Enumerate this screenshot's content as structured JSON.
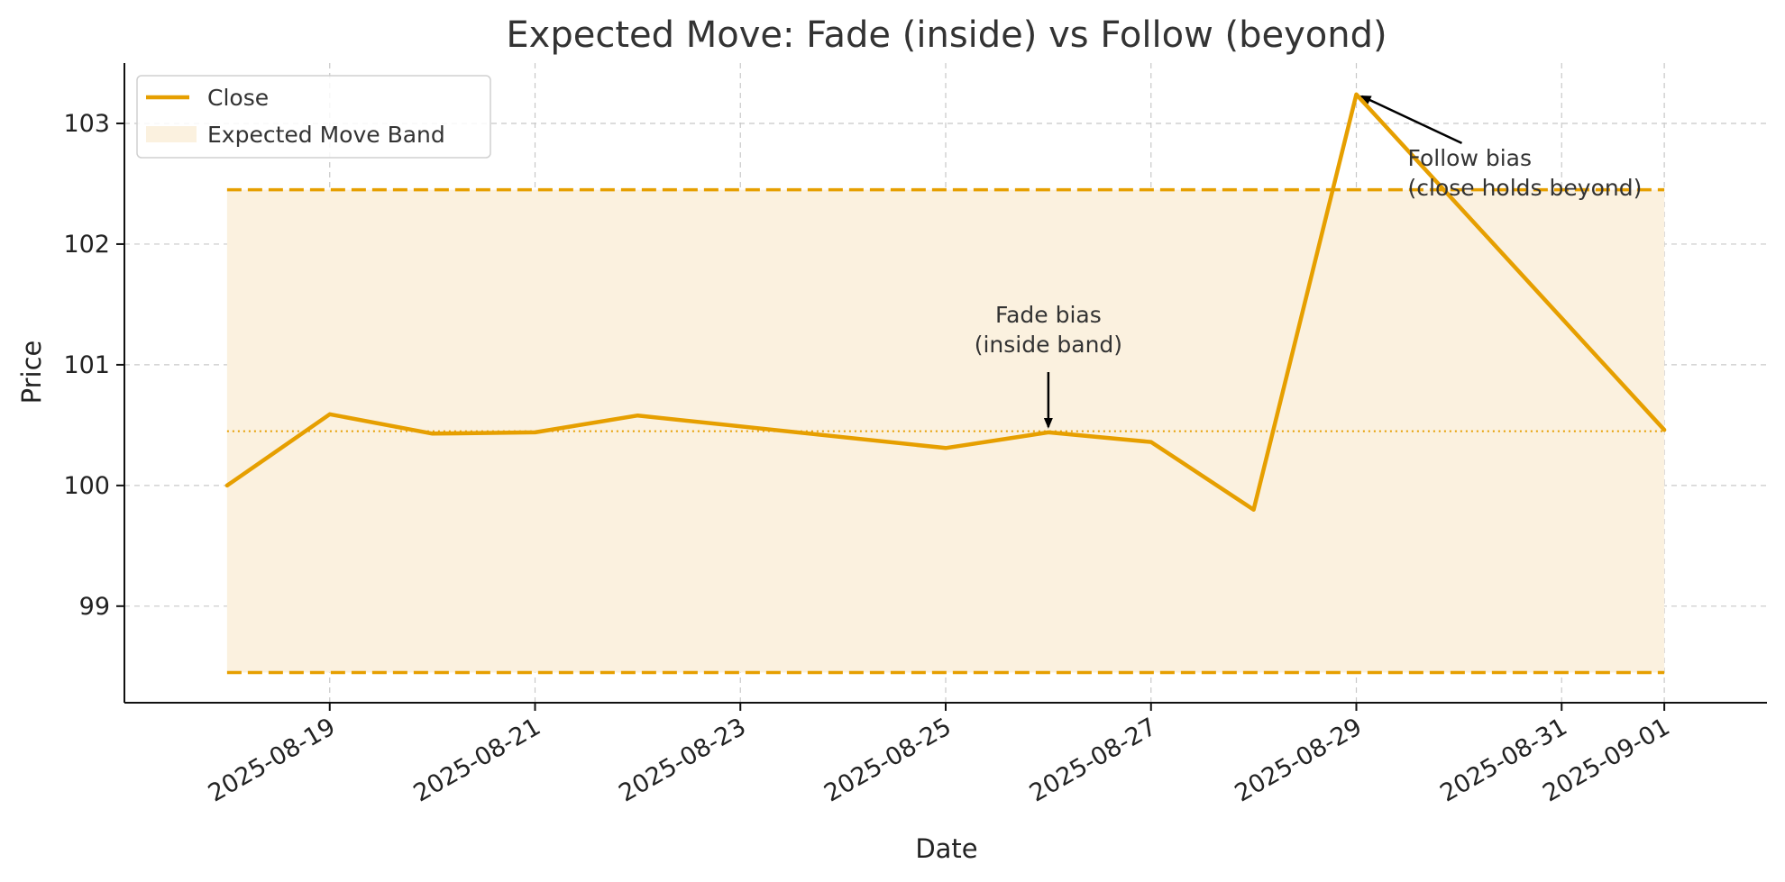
{
  "colors": {
    "line": "#E69F00",
    "band_fill": "#FBF1DF",
    "grid": "#c8c8c8",
    "text": "#333333"
  },
  "chart_data": {
    "type": "line",
    "title": "Expected Move: Fade (inside) vs Follow (beyond)",
    "xlabel": "Date",
    "ylabel": "Price",
    "x": [
      "2025-08-18",
      "2025-08-19",
      "2025-08-20",
      "2025-08-21",
      "2025-08-22",
      "2025-08-25",
      "2025-08-26",
      "2025-08-27",
      "2025-08-28",
      "2025-08-29",
      "2025-09-01"
    ],
    "series": [
      {
        "name": "Close",
        "values": [
          100.0,
          100.59,
          100.43,
          100.44,
          100.58,
          100.31,
          100.44,
          100.36,
          99.8,
          103.24,
          100.46
        ]
      }
    ],
    "band": {
      "name": "Expected Move Band",
      "upper": 102.45,
      "lower": 98.45,
      "center": 100.45
    },
    "xlim": [
      "2025-08-17",
      "2025-09-02"
    ],
    "ylim": [
      98.2,
      103.5
    ],
    "x_ticks": [
      "2025-08-19",
      "2025-08-21",
      "2025-08-23",
      "2025-08-25",
      "2025-08-27",
      "2025-08-29",
      "2025-08-31",
      "2025-09-01"
    ],
    "y_ticks": [
      99,
      100,
      101,
      102,
      103
    ],
    "grid": true,
    "legend_position": "top-left",
    "annotations": [
      {
        "id": "fade",
        "lines": [
          "Fade bias",
          "(inside band)"
        ],
        "point": {
          "x": "2025-08-26",
          "y": 100.44
        },
        "text_at": {
          "x": "2025-08-26",
          "y": 101.35
        }
      },
      {
        "id": "follow",
        "lines": [
          "Follow bias",
          "(close holds beyond)"
        ],
        "point": {
          "x": "2025-08-29",
          "y": 103.24
        },
        "text_at": {
          "x": "2025-08-29",
          "y": 102.65
        }
      }
    ]
  }
}
